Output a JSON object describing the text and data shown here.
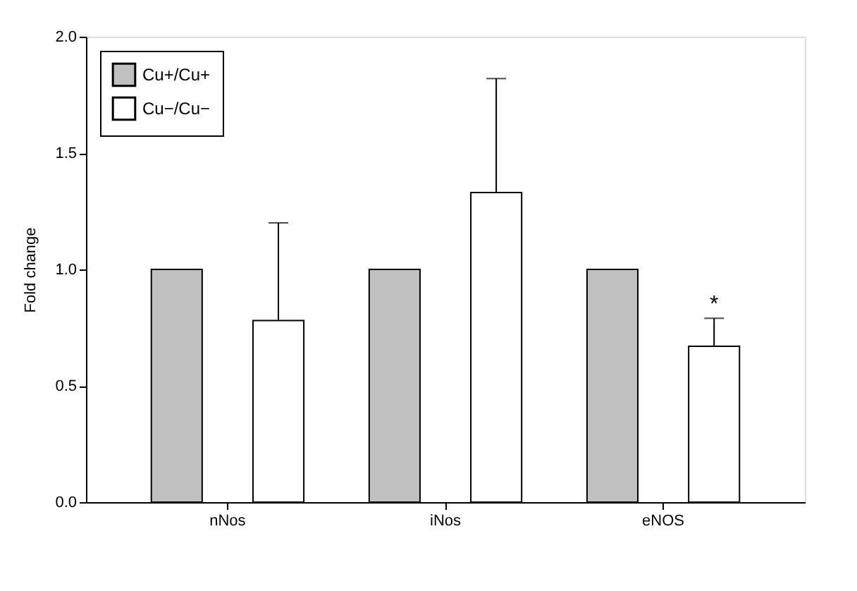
{
  "chart_data": {
    "type": "bar",
    "ylabel": "Fold change",
    "categories": [
      "nNos",
      "iNos",
      "eNOS"
    ],
    "series": [
      {
        "name": "Cu+/Cu+",
        "color": "#c0c0c0",
        "values": [
          1.0,
          1.0,
          1.0
        ]
      },
      {
        "name": "Cu−/Cu−",
        "color": "#ffffff",
        "values": [
          0.78,
          1.33,
          0.67
        ],
        "errors": [
          [
            0.78,
            1.2
          ],
          [
            1.33,
            1.82
          ],
          [
            0.67,
            0.79
          ]
        ]
      }
    ],
    "ylim": [
      0,
      2.0
    ],
    "yticks": [
      {
        "value": 0,
        "label": "0.0"
      },
      0.5,
      {
        "value": 1,
        "label": "1.0"
      },
      1.5,
      {
        "value": 2,
        "label": "2.0"
      }
    ],
    "annotations": [
      "*"
    ],
    "grid": false,
    "legend": "top left"
  }
}
